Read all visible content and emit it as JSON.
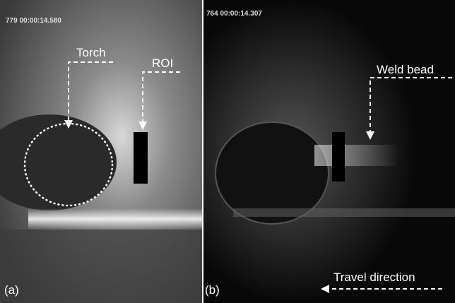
{
  "panels": [
    {
      "timestamp": "779 00:00:14.580",
      "label": "(a)",
      "annotations": [
        "Torch",
        "ROI"
      ]
    },
    {
      "timestamp": "764 00:00:14.307",
      "label": "(b)",
      "annotations": [
        "Weld bead",
        "Travel direction"
      ]
    }
  ]
}
